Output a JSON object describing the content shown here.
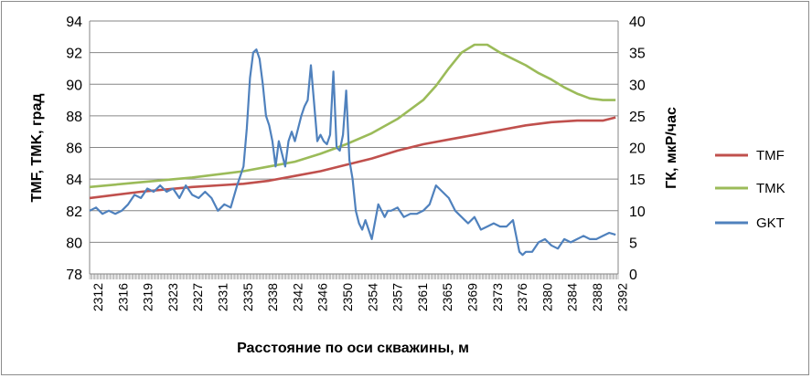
{
  "chart_data": {
    "type": "line",
    "xlabel": "Расстояние по оси скважины, м",
    "ylabel_left": "TMF, TMK, град",
    "ylabel_right": "ГК, мкР/час",
    "ylim_left": [
      78,
      94
    ],
    "ylim_right": [
      0,
      40
    ],
    "yticks_left": [
      78,
      80,
      82,
      84,
      86,
      88,
      90,
      92,
      94
    ],
    "yticks_right": [
      0,
      5,
      10,
      15,
      20,
      25,
      30,
      35,
      40
    ],
    "xlim": [
      2312,
      2394.4
    ],
    "xtick_labels": [
      "2312",
      "2316",
      "2319",
      "2323",
      "2327",
      "2331",
      "2335",
      "2338",
      "2342",
      "2346",
      "2350",
      "2354",
      "2357",
      "2361",
      "2365",
      "2369",
      "2373",
      "2376",
      "2380",
      "2384",
      "2388",
      "2392"
    ],
    "legend_position": "right",
    "series": [
      {
        "name": "TMF",
        "axis": "left",
        "color": "#c0504d",
        "x": [
          2312,
          2320,
          2328,
          2336,
          2340,
          2344,
          2348,
          2352,
          2356,
          2360,
          2364,
          2368,
          2372,
          2376,
          2380,
          2384,
          2388,
          2392,
          2394
        ],
        "y": [
          82.8,
          83.2,
          83.5,
          83.7,
          83.9,
          84.2,
          84.5,
          84.9,
          85.3,
          85.8,
          86.2,
          86.5,
          86.8,
          87.1,
          87.4,
          87.6,
          87.7,
          87.7,
          87.9
        ]
      },
      {
        "name": "TMK",
        "axis": "left",
        "color": "#9bbb59",
        "x": [
          2312,
          2320,
          2328,
          2336,
          2340,
          2344,
          2348,
          2352,
          2356,
          2360,
          2364,
          2366,
          2368,
          2370,
          2372,
          2374,
          2376,
          2378,
          2380,
          2382,
          2384,
          2386,
          2388,
          2390,
          2392,
          2394
        ],
        "y": [
          83.5,
          83.8,
          84.1,
          84.5,
          84.8,
          85.1,
          85.6,
          86.2,
          86.9,
          87.8,
          89.0,
          89.9,
          91.0,
          92.0,
          92.5,
          92.5,
          92.0,
          91.6,
          91.2,
          90.7,
          90.3,
          89.8,
          89.4,
          89.1,
          89.0,
          89.0
        ]
      },
      {
        "name": "GKT",
        "axis": "right",
        "color": "#4f81bd",
        "x": [
          2312,
          2313,
          2314,
          2315,
          2316,
          2317,
          2318,
          2319,
          2320,
          2321,
          2322,
          2323,
          2324,
          2325,
          2326,
          2327,
          2328,
          2329,
          2330,
          2331,
          2332,
          2333,
          2334,
          2335,
          2336,
          2336.5,
          2337,
          2337.5,
          2338,
          2338.5,
          2339,
          2339.5,
          2340,
          2340.5,
          2341,
          2341.5,
          2342,
          2342.5,
          2343,
          2343.5,
          2344,
          2345,
          2345.5,
          2346,
          2346.5,
          2347,
          2347.5,
          2348,
          2348.5,
          2349,
          2349.5,
          2350,
          2350.5,
          2351,
          2351.5,
          2352,
          2352.5,
          2353,
          2353.5,
          2354,
          2354.5,
          2355,
          2355.5,
          2356,
          2357,
          2358,
          2358.5,
          2359,
          2360,
          2361,
          2362,
          2363,
          2364,
          2365,
          2366,
          2367,
          2368,
          2369,
          2370,
          2371,
          2372,
          2373,
          2374,
          2375,
          2376,
          2377,
          2378,
          2379,
          2379.5,
          2380,
          2381,
          2382,
          2383,
          2384,
          2385,
          2386,
          2387,
          2388,
          2389,
          2390,
          2391,
          2392,
          2393,
          2394
        ],
        "y": [
          10,
          10.5,
          9.5,
          10,
          9.5,
          10,
          11,
          12.5,
          12,
          13.5,
          13,
          14,
          13,
          13.5,
          12,
          14,
          12.5,
          12,
          13,
          12,
          10,
          11,
          10.5,
          14,
          17,
          23,
          31,
          35,
          35.5,
          34,
          30,
          25,
          23.5,
          21,
          17,
          21,
          19,
          17,
          21,
          22.5,
          21,
          25,
          26.5,
          27.5,
          33,
          27,
          21,
          22,
          21,
          20.5,
          22,
          32,
          20,
          19.5,
          22,
          29,
          18,
          15,
          10,
          8,
          7,
          8.5,
          7,
          5.5,
          11,
          9,
          10,
          10,
          10.5,
          9,
          9.5,
          9.5,
          10,
          11,
          14,
          13,
          12,
          10,
          9,
          8,
          9,
          7,
          7.5,
          8,
          7.5,
          7.5,
          8.5,
          3.5,
          3,
          3.5,
          3.5,
          5,
          5.5,
          4.5,
          4,
          5.5,
          5,
          5.5,
          6,
          5.5,
          5.5,
          6,
          6.5,
          6.2
        ]
      }
    ]
  }
}
